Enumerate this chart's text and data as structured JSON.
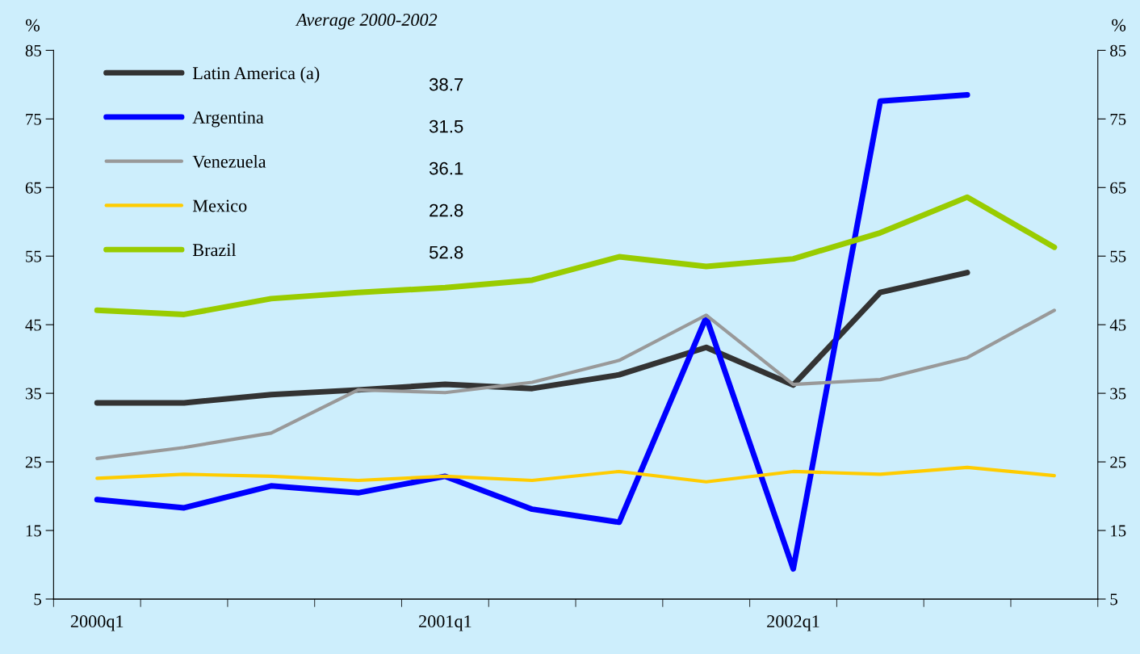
{
  "chart_data": {
    "type": "line",
    "categories": [
      "2000q1",
      null,
      null,
      null,
      "2001q1",
      null,
      null,
      null,
      "2002q1",
      null,
      null,
      null
    ],
    "series": [
      {
        "name": "Latin America (a)",
        "color": "#333333",
        "values": [
          33.6,
          33.6,
          34.8,
          35.5,
          36.3,
          35.7,
          37.7,
          41.7,
          36.2,
          49.7,
          52.6,
          null
        ]
      },
      {
        "name": "Argentina",
        "color": "#0000ff",
        "values": [
          19.5,
          18.3,
          21.5,
          20.5,
          22.9,
          18.1,
          16.2,
          46.1,
          9.4,
          77.6,
          78.5,
          null
        ]
      },
      {
        "name": "Venezuela",
        "color": "#999999",
        "values": [
          25.5,
          27.1,
          29.2,
          35.5,
          35.1,
          36.6,
          39.8,
          46.4,
          36.3,
          37.0,
          40.2,
          47.1
        ]
      },
      {
        "name": "Mexico",
        "color": "#ffcc00",
        "values": [
          22.6,
          23.2,
          22.9,
          22.3,
          22.9,
          22.3,
          23.6,
          22.1,
          23.6,
          23.2,
          24.2,
          23.0
        ]
      },
      {
        "name": "Brazil",
        "color": "#99cc00",
        "values": [
          47.1,
          46.5,
          48.8,
          49.7,
          50.4,
          51.5,
          54.9,
          53.5,
          54.6,
          58.4,
          63.6,
          56.3
        ]
      }
    ],
    "legend_title": "Average 2000-2002",
    "annotations": [
      "38.7",
      "31.5",
      "36.1",
      "22.8",
      "52.8"
    ],
    "ylabel": "%",
    "y2label": "%",
    "ylim": [
      5,
      85
    ],
    "yticks": [
      5,
      15,
      25,
      35,
      45,
      55,
      65,
      75,
      85
    ],
    "y2lim": [
      5,
      85
    ],
    "y2ticks": [
      5,
      15,
      25,
      35,
      45,
      55,
      65,
      75,
      85
    ],
    "grid": false,
    "legend": "top left",
    "marker": "none",
    "line_style": "solid"
  }
}
